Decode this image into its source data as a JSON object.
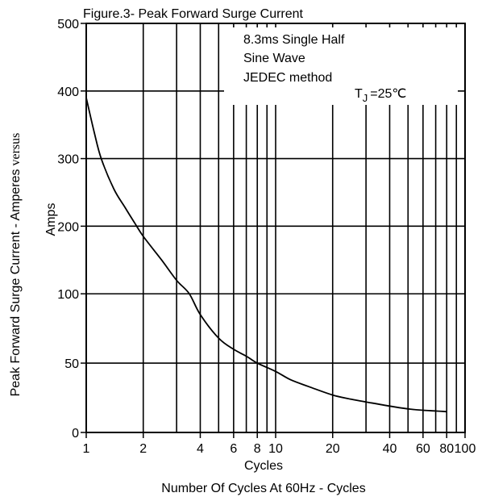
{
  "chart_data": {
    "type": "line",
    "title": "Figure.3- Peak Forward Surge Current",
    "xscale": "log",
    "xlim": [
      1,
      100
    ],
    "ylim": [
      0,
      500
    ],
    "x_ticks": [
      {
        "value": 1,
        "label": "1"
      },
      {
        "value": 2,
        "label": "2"
      },
      {
        "value": 4,
        "label": "4"
      },
      {
        "value": 6,
        "label": "6"
      },
      {
        "value": 8,
        "label": "8"
      },
      {
        "value": 10,
        "label": "10"
      },
      {
        "value": 20,
        "label": "20"
      },
      {
        "value": 40,
        "label": "40"
      },
      {
        "value": 60,
        "label": "60"
      },
      {
        "value": 80,
        "label": "80"
      },
      {
        "value": 100,
        "label": "100"
      }
    ],
    "x_minor_grid": [
      3,
      5,
      7,
      9,
      30,
      50,
      70,
      90
    ],
    "y_ticks": [
      {
        "value": 0,
        "label": "0"
      },
      {
        "value": 50,
        "label": "50"
      },
      {
        "value": 100,
        "label": "100"
      },
      {
        "value": 200,
        "label": "200"
      },
      {
        "value": 300,
        "label": "300"
      },
      {
        "value": 400,
        "label": "400"
      },
      {
        "value": 500,
        "label": "500"
      }
    ],
    "xlabel_line1": "Cycles",
    "xlabel_line2": "Number Of Cycles At 60Hz - Cycles",
    "ylabel_main": "Peak Forward Surge Current - Amperes",
    "ylabel_versus": "versus",
    "ylabel_unit": "Amps",
    "grid": true,
    "annotation": {
      "lines": [
        "8.3ms Single Half",
        "Sine Wave",
        "JEDEC method"
      ],
      "temp_symbol": "T",
      "temp_subscript": "J",
      "temp_value": "=25",
      "temp_unit": "℃"
    },
    "series": [
      {
        "x": [
          1,
          1.1,
          1.2,
          1.4,
          1.6,
          1.8,
          2,
          2.5,
          3,
          3.5,
          4,
          5,
          6,
          7,
          8,
          10,
          12,
          15,
          20,
          25,
          30,
          40,
          50,
          60,
          70,
          80
        ],
        "y": [
          390,
          340,
          300,
          255,
          228,
          205,
          185,
          150,
          120,
          100,
          85,
          68,
          60,
          55,
          50,
          44,
          38,
          33,
          27,
          24,
          22,
          19,
          17,
          16,
          15.5,
          15
        ]
      }
    ]
  }
}
